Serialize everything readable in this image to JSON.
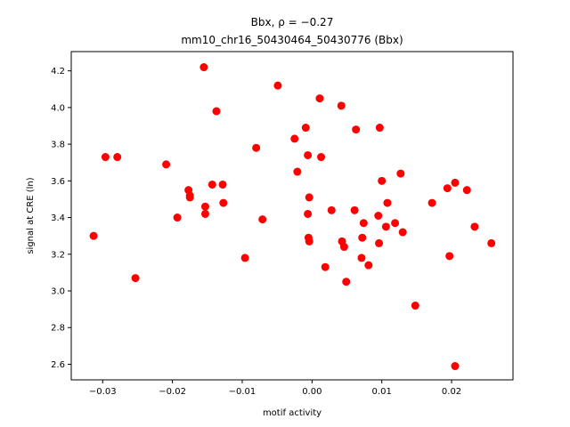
{
  "chart_data": {
    "type": "scatter",
    "title_line1": "Bbx, ρ = −0.27",
    "title_line2": "mm10_chr16_50430464_50430776 (Bbx)",
    "xlabel": "motif activity",
    "ylabel": "signal at CRE (ln)",
    "xlim": [
      -0.0345,
      0.0288
    ],
    "ylim": [
      2.515,
      4.305
    ],
    "xticks": [
      -0.03,
      -0.02,
      -0.01,
      0.0,
      0.01,
      0.02
    ],
    "xtick_labels": [
      "−0.03",
      "−0.02",
      "−0.01",
      "0.00",
      "0.01",
      "0.02"
    ],
    "yticks": [
      2.6,
      2.8,
      3.0,
      3.2,
      3.4,
      3.6,
      3.8,
      4.0,
      4.2
    ],
    "ytick_labels": [
      "2.6",
      "2.8",
      "3.0",
      "3.2",
      "3.4",
      "3.6",
      "3.8",
      "4.0",
      "4.2"
    ],
    "grid": false,
    "marker_color": "#ff0000",
    "points": [
      {
        "x": -0.0313,
        "y": 3.3
      },
      {
        "x": -0.0296,
        "y": 3.73
      },
      {
        "x": -0.0279,
        "y": 3.73
      },
      {
        "x": -0.0253,
        "y": 3.07
      },
      {
        "x": -0.0209,
        "y": 3.69
      },
      {
        "x": -0.0193,
        "y": 3.4
      },
      {
        "x": -0.0177,
        "y": 3.55
      },
      {
        "x": -0.0175,
        "y": 3.51
      },
      {
        "x": -0.0175,
        "y": 3.52
      },
      {
        "x": -0.0155,
        "y": 4.22
      },
      {
        "x": -0.0153,
        "y": 3.46
      },
      {
        "x": -0.0153,
        "y": 3.42
      },
      {
        "x": -0.0143,
        "y": 3.58
      },
      {
        "x": -0.0137,
        "y": 3.98
      },
      {
        "x": -0.0128,
        "y": 3.58
      },
      {
        "x": -0.0127,
        "y": 3.48
      },
      {
        "x": -0.0096,
        "y": 3.18
      },
      {
        "x": -0.008,
        "y": 3.78
      },
      {
        "x": -0.0071,
        "y": 3.39
      },
      {
        "x": -0.0049,
        "y": 4.12
      },
      {
        "x": -0.0025,
        "y": 3.83
      },
      {
        "x": -0.0021,
        "y": 3.65
      },
      {
        "x": -0.0009,
        "y": 3.89
      },
      {
        "x": -0.0006,
        "y": 3.74
      },
      {
        "x": -0.0006,
        "y": 3.42
      },
      {
        "x": -0.0005,
        "y": 3.29
      },
      {
        "x": -0.0004,
        "y": 3.51
      },
      {
        "x": -0.0004,
        "y": 3.27
      },
      {
        "x": 0.0011,
        "y": 4.05
      },
      {
        "x": 0.0013,
        "y": 3.73
      },
      {
        "x": 0.0019,
        "y": 3.13
      },
      {
        "x": 0.0028,
        "y": 3.44
      },
      {
        "x": 0.0042,
        "y": 4.01
      },
      {
        "x": 0.0043,
        "y": 3.27
      },
      {
        "x": 0.0046,
        "y": 3.24
      },
      {
        "x": 0.0049,
        "y": 3.05
      },
      {
        "x": 0.0061,
        "y": 3.44
      },
      {
        "x": 0.0063,
        "y": 3.88
      },
      {
        "x": 0.0071,
        "y": 3.18
      },
      {
        "x": 0.0072,
        "y": 3.29
      },
      {
        "x": 0.0074,
        "y": 3.37
      },
      {
        "x": 0.0081,
        "y": 3.14
      },
      {
        "x": 0.0095,
        "y": 3.41
      },
      {
        "x": 0.0096,
        "y": 3.26
      },
      {
        "x": 0.0097,
        "y": 3.89
      },
      {
        "x": 0.01,
        "y": 3.6
      },
      {
        "x": 0.0106,
        "y": 3.35
      },
      {
        "x": 0.0108,
        "y": 3.48
      },
      {
        "x": 0.0119,
        "y": 3.37
      },
      {
        "x": 0.0127,
        "y": 3.64
      },
      {
        "x": 0.013,
        "y": 3.32
      },
      {
        "x": 0.0148,
        "y": 2.92
      },
      {
        "x": 0.0172,
        "y": 3.48
      },
      {
        "x": 0.0194,
        "y": 3.56
      },
      {
        "x": 0.0197,
        "y": 3.19
      },
      {
        "x": 0.0205,
        "y": 3.59
      },
      {
        "x": 0.0205,
        "y": 2.59
      },
      {
        "x": 0.0222,
        "y": 3.55
      },
      {
        "x": 0.0233,
        "y": 3.35
      },
      {
        "x": 0.0257,
        "y": 3.26
      }
    ]
  }
}
